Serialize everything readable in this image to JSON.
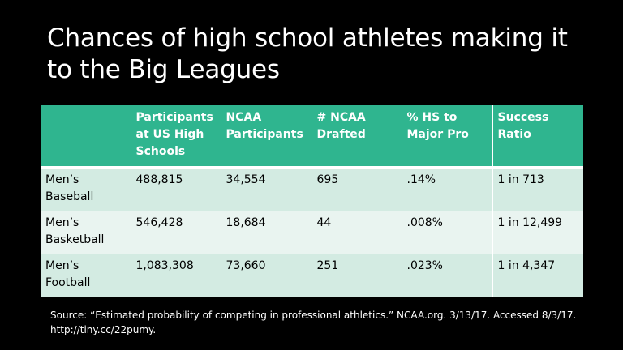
{
  "slide": {
    "title": "Chances of high school athletes making it to the Big Leagues",
    "source": "Source: “Estimated probability of competing in professional athletics.” NCAA.org. 3/13/17. Accessed 8/3/17. http://tiny.cc/22pumy."
  },
  "colors": {
    "header_bg": "#2fb58f",
    "row_odd_bg": "#d3ebe2",
    "row_even_bg": "#e9f4f0",
    "background": "#000000"
  },
  "table": {
    "headers": [
      "",
      "Participants at US High Schools",
      "NCAA Participants",
      "# NCAA Drafted",
      "% HS to Major Pro",
      "Success Ratio"
    ],
    "rows": [
      [
        "Men’s Baseball",
        "488,815",
        "34,554",
        "695",
        ".14%",
        "1 in 713"
      ],
      [
        "Men’s Basketball",
        "546,428",
        "18,684",
        "44",
        ".008%",
        "1 in 12,499"
      ],
      [
        "Men’s Football",
        "1,083,308",
        "73,660",
        "251",
        ".023%",
        "1 in 4,347"
      ]
    ]
  }
}
